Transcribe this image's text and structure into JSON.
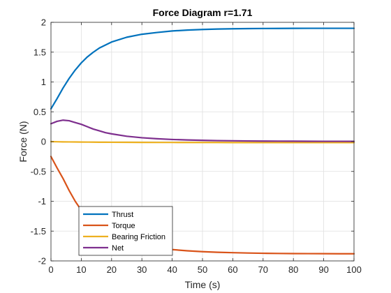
{
  "chart_data": {
    "type": "line",
    "title": "Force Diagram r=1.71",
    "xlabel": "Time (s)",
    "ylabel": "Force (N)",
    "xlim": [
      0,
      100
    ],
    "ylim": [
      -2,
      2
    ],
    "xticks": [
      0,
      10,
      20,
      30,
      40,
      50,
      60,
      70,
      80,
      90,
      100
    ],
    "yticks": [
      -2,
      -1.5,
      -1,
      -0.5,
      0,
      0.5,
      1,
      1.5,
      2
    ],
    "grid": true,
    "legend": "bottom-left",
    "x": [
      0,
      2,
      4,
      6,
      8,
      10,
      12,
      14,
      16,
      18,
      20,
      25,
      30,
      35,
      40,
      45,
      50,
      55,
      60,
      65,
      70,
      75,
      80,
      85,
      90,
      95,
      100
    ],
    "series": [
      {
        "name": "Thrust",
        "color": "#0072BD",
        "values": [
          0.55,
          0.72,
          0.9,
          1.06,
          1.2,
          1.32,
          1.42,
          1.5,
          1.57,
          1.62,
          1.67,
          1.75,
          1.8,
          1.83,
          1.855,
          1.87,
          1.88,
          1.887,
          1.892,
          1.895,
          1.897,
          1.898,
          1.899,
          1.9,
          1.9,
          1.9,
          1.9
        ]
      },
      {
        "name": "Torque",
        "color": "#D95319",
        "values": [
          -0.25,
          -0.44,
          -0.62,
          -0.82,
          -1.0,
          -1.15,
          -1.28,
          -1.39,
          -1.48,
          -1.55,
          -1.61,
          -1.7,
          -1.75,
          -1.78,
          -1.81,
          -1.83,
          -1.845,
          -1.855,
          -1.862,
          -1.868,
          -1.872,
          -1.875,
          -1.877,
          -1.878,
          -1.879,
          -1.88,
          -1.88
        ]
      },
      {
        "name": "Bearing Friction",
        "color": "#EDB120",
        "values": [
          0.0,
          -0.002,
          -0.004,
          -0.005,
          -0.006,
          -0.007,
          -0.008,
          -0.009,
          -0.01,
          -0.01,
          -0.011,
          -0.012,
          -0.013,
          -0.014,
          -0.014,
          -0.015,
          -0.015,
          -0.015,
          -0.016,
          -0.016,
          -0.016,
          -0.016,
          -0.016,
          -0.016,
          -0.016,
          -0.016,
          -0.016
        ]
      },
      {
        "name": "Net",
        "color": "#7E2F8E",
        "values": [
          0.3,
          0.34,
          0.36,
          0.35,
          0.32,
          0.29,
          0.25,
          0.21,
          0.18,
          0.15,
          0.13,
          0.09,
          0.065,
          0.048,
          0.036,
          0.028,
          0.022,
          0.017,
          0.014,
          0.011,
          0.009,
          0.008,
          0.007,
          0.006,
          0.005,
          0.005,
          0.004
        ]
      }
    ]
  }
}
